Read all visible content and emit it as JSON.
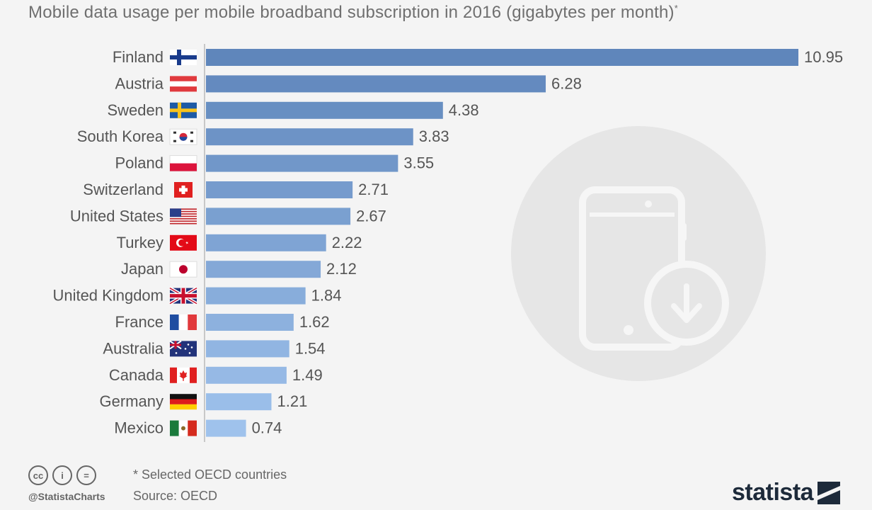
{
  "chart_data": {
    "type": "bar",
    "orientation": "horizontal",
    "title": "Mobile data usage per mobile broadband subscription in 2016 (gigabytes per month)",
    "title_marker": "*",
    "categories": [
      "Finland",
      "Austria",
      "Sweden",
      "South Korea",
      "Poland",
      "Switzerland",
      "United States",
      "Turkey",
      "Japan",
      "United Kingdom",
      "France",
      "Australia",
      "Canada",
      "Germany",
      "Mexico"
    ],
    "values": [
      10.95,
      6.28,
      4.38,
      3.83,
      3.55,
      2.71,
      2.67,
      2.22,
      2.12,
      1.84,
      1.62,
      1.54,
      1.49,
      1.21,
      0.74
    ],
    "value_labels": [
      "10.95",
      "6.28",
      "4.38",
      "3.83",
      "3.55",
      "2.71",
      "2.67",
      "2.22",
      "2.12",
      "1.84",
      "1.62",
      "1.54",
      "1.49",
      "1.21",
      "0.74"
    ],
    "xlim": [
      0,
      10.95
    ],
    "grid": false,
    "bar_color_start": "#5f86bb",
    "bar_color_end": "#9fc2ec"
  },
  "flags": [
    "finland-flag-icon",
    "austria-flag-icon",
    "sweden-flag-icon",
    "south-korea-flag-icon",
    "poland-flag-icon",
    "switzerland-flag-icon",
    "united-states-flag-icon",
    "turkey-flag-icon",
    "japan-flag-icon",
    "united-kingdom-flag-icon",
    "france-flag-icon",
    "australia-flag-icon",
    "canada-flag-icon",
    "germany-flag-icon",
    "mexico-flag-icon"
  ],
  "footer": {
    "note": "* Selected OECD countries",
    "source": "Source: OECD",
    "handle": "@StatistaCharts",
    "brand": "statista",
    "license_icons": [
      "cc",
      "i",
      "="
    ]
  },
  "background_icon": "smartphone-download-icon"
}
